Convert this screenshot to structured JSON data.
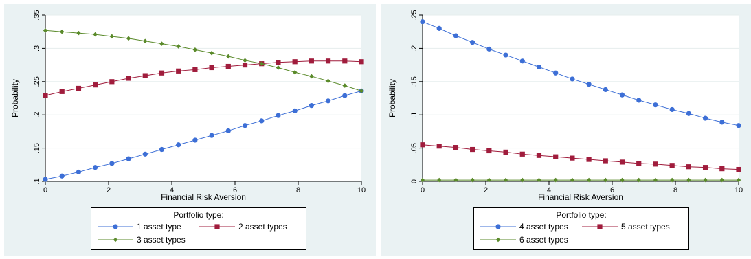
{
  "chart_data": [
    {
      "type": "line",
      "xlabel": "Financial Risk Aversion",
      "ylabel": "Probability",
      "xlim": [
        0,
        10
      ],
      "ylim": [
        0.1,
        0.35
      ],
      "xticks": [
        0,
        2,
        4,
        6,
        8,
        10
      ],
      "yticks": [
        0.1,
        0.15,
        0.2,
        0.25,
        0.3,
        0.35
      ],
      "ytick_labels": [
        ".1",
        ".15",
        ".2",
        ".25",
        ".3",
        ".35"
      ],
      "grid": true,
      "legend_title": "Portfolio type:",
      "legend_position": "bottom",
      "x": [
        0,
        0.526,
        1.053,
        1.579,
        2.105,
        2.632,
        3.158,
        3.684,
        4.211,
        4.737,
        5.263,
        5.789,
        6.316,
        6.842,
        7.368,
        7.895,
        8.421,
        8.947,
        9.474,
        10
      ],
      "series": [
        {
          "name": "1 asset type",
          "color": "#3d6fd6",
          "marker": "circle",
          "values": [
            0.103,
            0.108,
            0.114,
            0.121,
            0.127,
            0.134,
            0.141,
            0.148,
            0.155,
            0.162,
            0.169,
            0.176,
            0.184,
            0.191,
            0.199,
            0.206,
            0.214,
            0.221,
            0.229,
            0.236
          ]
        },
        {
          "name": "2 asset types",
          "color": "#a01c3c",
          "marker": "square",
          "values": [
            0.229,
            0.235,
            0.24,
            0.245,
            0.25,
            0.255,
            0.259,
            0.263,
            0.266,
            0.268,
            0.271,
            0.273,
            0.275,
            0.277,
            0.279,
            0.28,
            0.281,
            0.281,
            0.281,
            0.28
          ]
        },
        {
          "name": "3 asset types",
          "color": "#5a8a2a",
          "marker": "diamond",
          "values": [
            0.327,
            0.325,
            0.323,
            0.321,
            0.318,
            0.315,
            0.311,
            0.307,
            0.303,
            0.298,
            0.293,
            0.288,
            0.282,
            0.277,
            0.271,
            0.264,
            0.258,
            0.251,
            0.244,
            0.236
          ]
        }
      ]
    },
    {
      "type": "line",
      "xlabel": "Financial Risk Aversion",
      "ylabel": "Probability",
      "xlim": [
        0,
        10
      ],
      "ylim": [
        0,
        0.25
      ],
      "xticks": [
        0,
        2,
        4,
        6,
        8,
        10
      ],
      "yticks": [
        0,
        0.05,
        0.1,
        0.15,
        0.2,
        0.25
      ],
      "ytick_labels": [
        "0",
        ".05",
        ".1",
        ".15",
        ".2",
        ".25"
      ],
      "grid": true,
      "legend_title": "Portfolio type:",
      "legend_position": "bottom",
      "x": [
        0,
        0.526,
        1.053,
        1.579,
        2.105,
        2.632,
        3.158,
        3.684,
        4.211,
        4.737,
        5.263,
        5.789,
        6.316,
        6.842,
        7.368,
        7.895,
        8.421,
        8.947,
        9.474,
        10
      ],
      "series": [
        {
          "name": "4 asset types",
          "color": "#3d6fd6",
          "marker": "circle",
          "values": [
            0.24,
            0.23,
            0.219,
            0.209,
            0.199,
            0.19,
            0.181,
            0.172,
            0.163,
            0.154,
            0.146,
            0.138,
            0.13,
            0.122,
            0.115,
            0.108,
            0.102,
            0.095,
            0.089,
            0.084
          ]
        },
        {
          "name": "5 asset types",
          "color": "#a01c3c",
          "marker": "square",
          "values": [
            0.055,
            0.053,
            0.051,
            0.048,
            0.046,
            0.044,
            0.041,
            0.039,
            0.037,
            0.035,
            0.033,
            0.031,
            0.029,
            0.027,
            0.026,
            0.024,
            0.022,
            0.021,
            0.019,
            0.018
          ]
        },
        {
          "name": "6 asset types",
          "color": "#5a8a2a",
          "marker": "diamond",
          "values": [
            0.002,
            0.002,
            0.002,
            0.002,
            0.002,
            0.002,
            0.002,
            0.002,
            0.002,
            0.002,
            0.002,
            0.002,
            0.002,
            0.002,
            0.002,
            0.002,
            0.002,
            0.002,
            0.002,
            0.002
          ]
        }
      ]
    }
  ]
}
